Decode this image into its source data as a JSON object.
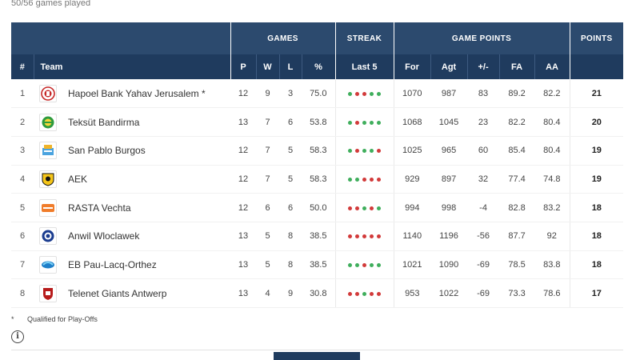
{
  "games_played": "50/56 games played",
  "header_groups": {
    "games": "GAMES",
    "streak": "STREAK",
    "game_points": "GAME POINTS",
    "points": "POINTS"
  },
  "columns": {
    "rank": "#",
    "team": "Team",
    "p": "P",
    "w": "W",
    "l": "L",
    "pct": "%",
    "last5": "Last 5",
    "for": "For",
    "agt": "Agt",
    "diff": "+/-",
    "fa": "FA",
    "aa": "AA"
  },
  "colors": {
    "win": "#3fae5c",
    "loss": "#d23a3a",
    "header": "#2c4a6e",
    "subheader": "#1f3b5e"
  },
  "rows": [
    {
      "rank": "1",
      "team": "Hapoel Bank Yahav Jerusalem *",
      "logo": "hapoel-jerusalem-logo-icon",
      "p": "12",
      "w": "9",
      "l": "3",
      "pct": "75.0",
      "streak": [
        "W",
        "L",
        "L",
        "W",
        "W"
      ],
      "for": "1070",
      "agt": "987",
      "diff": "83",
      "fa": "89.2",
      "aa": "82.2",
      "pts": "21"
    },
    {
      "rank": "2",
      "team": "Teksüt Bandirma",
      "logo": "teksut-bandirma-logo-icon",
      "p": "13",
      "w": "7",
      "l": "6",
      "pct": "53.8",
      "streak": [
        "W",
        "L",
        "W",
        "W",
        "W"
      ],
      "for": "1068",
      "agt": "1045",
      "diff": "23",
      "fa": "82.2",
      "aa": "80.4",
      "pts": "20"
    },
    {
      "rank": "3",
      "team": "San Pablo Burgos",
      "logo": "san-pablo-burgos-logo-icon",
      "p": "12",
      "w": "7",
      "l": "5",
      "pct": "58.3",
      "streak": [
        "W",
        "L",
        "W",
        "W",
        "L"
      ],
      "for": "1025",
      "agt": "965",
      "diff": "60",
      "fa": "85.4",
      "aa": "80.4",
      "pts": "19"
    },
    {
      "rank": "4",
      "team": "AEK",
      "logo": "aek-logo-icon",
      "p": "12",
      "w": "7",
      "l": "5",
      "pct": "58.3",
      "streak": [
        "W",
        "W",
        "L",
        "L",
        "L"
      ],
      "for": "929",
      "agt": "897",
      "diff": "32",
      "fa": "77.4",
      "aa": "74.8",
      "pts": "19"
    },
    {
      "rank": "5",
      "team": "RASTA Vechta",
      "logo": "rasta-vechta-logo-icon",
      "p": "12",
      "w": "6",
      "l": "6",
      "pct": "50.0",
      "streak": [
        "L",
        "L",
        "W",
        "L",
        "W"
      ],
      "for": "994",
      "agt": "998",
      "diff": "-4",
      "fa": "82.8",
      "aa": "83.2",
      "pts": "18"
    },
    {
      "rank": "6",
      "team": "Anwil Wloclawek",
      "logo": "anwil-wloclawek-logo-icon",
      "p": "13",
      "w": "5",
      "l": "8",
      "pct": "38.5",
      "streak": [
        "L",
        "L",
        "L",
        "L",
        "L"
      ],
      "for": "1140",
      "agt": "1196",
      "diff": "-56",
      "fa": "87.7",
      "aa": "92",
      "pts": "18"
    },
    {
      "rank": "7",
      "team": "EB Pau-Lacq-Orthez",
      "logo": "pau-orthez-logo-icon",
      "p": "13",
      "w": "5",
      "l": "8",
      "pct": "38.5",
      "streak": [
        "W",
        "W",
        "L",
        "W",
        "W"
      ],
      "for": "1021",
      "agt": "1090",
      "diff": "-69",
      "fa": "78.5",
      "aa": "83.8",
      "pts": "18"
    },
    {
      "rank": "8",
      "team": "Telenet Giants Antwerp",
      "logo": "antwerp-giants-logo-icon",
      "p": "13",
      "w": "4",
      "l": "9",
      "pct": "30.8",
      "streak": [
        "L",
        "L",
        "W",
        "L",
        "L"
      ],
      "for": "953",
      "agt": "1022",
      "diff": "-69",
      "fa": "73.3",
      "aa": "78.6",
      "pts": "17"
    }
  ],
  "legend": {
    "symbol": "*",
    "text": "Qualified for Play-Offs"
  },
  "info_symbol": "i"
}
